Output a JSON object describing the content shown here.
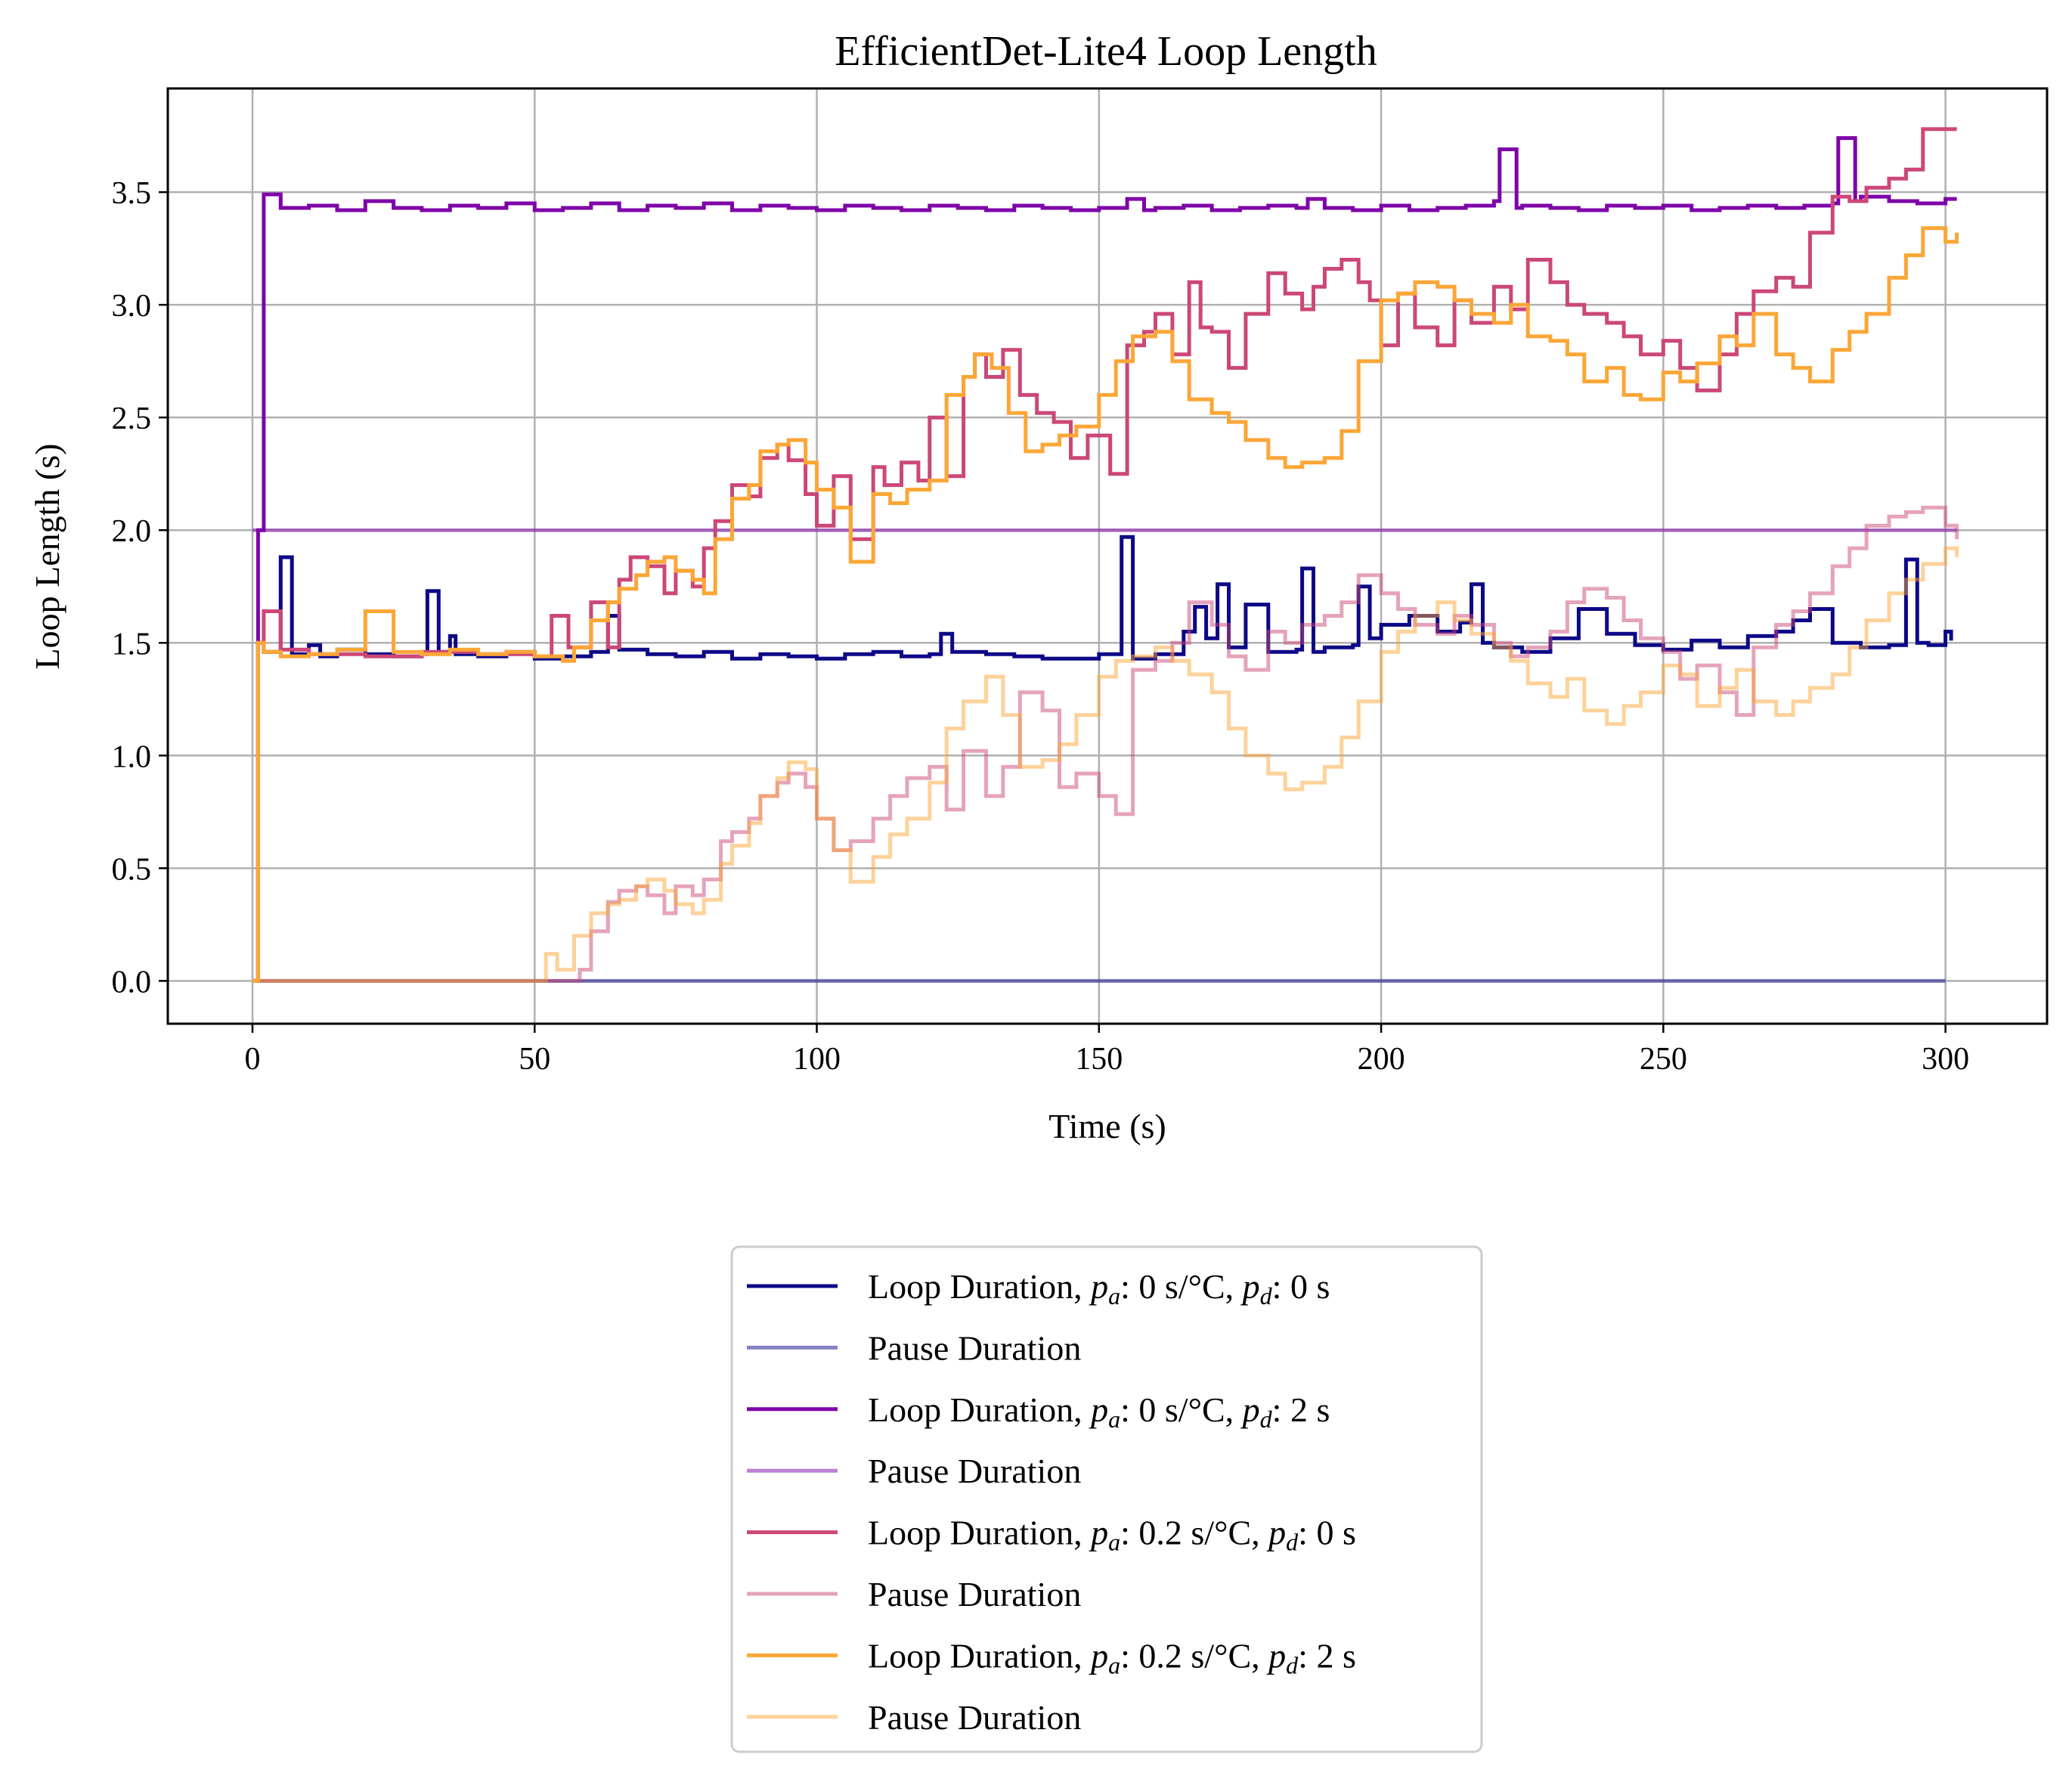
{
  "chart_data": {
    "type": "line",
    "title": "EfficientDet-Lite4 Loop Length",
    "xlabel": "Time (s)",
    "ylabel": "Loop Length (s)",
    "xlim": [
      -15,
      318
    ],
    "ylim": [
      -0.19,
      3.96
    ],
    "xticks": [
      0,
      50,
      100,
      150,
      200,
      250,
      300
    ],
    "yticks": [
      0.0,
      0.5,
      1.0,
      1.5,
      2.0,
      2.5,
      3.0,
      3.5
    ],
    "xtick_labels": [
      "0",
      "50",
      "100",
      "150",
      "200",
      "250",
      "300"
    ],
    "ytick_labels": [
      "0.0",
      "0.5",
      "1.0",
      "1.5",
      "2.0",
      "2.5",
      "3.0",
      "3.5"
    ],
    "grid": true,
    "legend_position": "below",
    "series": [
      {
        "name": "Loop Duration, p_a: 0 s/°C, p_d: 0 s",
        "legend_main": "Loop Duration, ",
        "legend_pa": "p",
        "legend_pa_sub": "a",
        "legend_mid": ": 0 s/°C, ",
        "legend_pd": "p",
        "legend_pd_sub": "d",
        "legend_end": ": 0 s",
        "color": "#0d0887",
        "opacity": 1.0,
        "x": [
          0,
          1,
          2,
          5,
          7,
          10,
          12,
          15,
          20,
          25,
          30,
          31,
          33,
          35,
          36,
          40,
          45,
          50,
          55,
          60,
          63,
          65,
          70,
          75,
          80,
          85,
          90,
          95,
          100,
          105,
          110,
          115,
          120,
          122,
          124,
          130,
          135,
          140,
          150,
          154,
          156,
          160,
          165,
          167,
          169,
          171,
          173,
          176,
          180,
          185,
          186,
          188,
          190,
          195,
          196,
          198,
          200,
          205,
          210,
          214,
          216,
          218,
          220,
          225,
          230,
          235,
          240,
          245,
          250,
          255,
          260,
          265,
          270,
          273,
          276,
          280,
          285,
          290,
          293,
          295,
          297,
          300,
          301
        ],
        "y": [
          0,
          1.5,
          1.46,
          1.88,
          1.45,
          1.49,
          1.44,
          1.47,
          1.45,
          1.44,
          1.45,
          1.73,
          1.46,
          1.53,
          1.45,
          1.44,
          1.46,
          1.43,
          1.44,
          1.46,
          1.62,
          1.47,
          1.45,
          1.44,
          1.46,
          1.43,
          1.45,
          1.44,
          1.43,
          1.45,
          1.46,
          1.44,
          1.45,
          1.54,
          1.46,
          1.45,
          1.44,
          1.43,
          1.45,
          1.97,
          1.43,
          1.45,
          1.55,
          1.66,
          1.52,
          1.76,
          1.48,
          1.67,
          1.46,
          1.47,
          1.83,
          1.46,
          1.48,
          1.49,
          1.75,
          1.52,
          1.58,
          1.62,
          1.55,
          1.59,
          1.76,
          1.5,
          1.48,
          1.46,
          1.52,
          1.65,
          1.54,
          1.49,
          1.47,
          1.51,
          1.48,
          1.53,
          1.55,
          1.6,
          1.65,
          1.5,
          1.48,
          1.49,
          1.87,
          1.5,
          1.49,
          1.55,
          1.51
        ]
      },
      {
        "name": "Pause Duration",
        "legend_main": "Pause Duration",
        "color": "#0d0887",
        "opacity": 0.5,
        "x": [
          0,
          300
        ],
        "y": [
          0,
          0
        ]
      },
      {
        "name": "Loop Duration, p_a: 0 s/°C, p_d: 2 s",
        "legend_main": "Loop Duration, ",
        "legend_pa": "p",
        "legend_pa_sub": "a",
        "legend_mid": ": 0 s/°C, ",
        "legend_pd": "p",
        "legend_pd_sub": "d",
        "legend_end": ": 2 s",
        "color": "#7e03a8",
        "opacity": 1.0,
        "x": [
          0,
          1,
          2,
          5,
          10,
          15,
          20,
          25,
          30,
          35,
          40,
          45,
          50,
          55,
          60,
          65,
          70,
          75,
          80,
          85,
          90,
          95,
          100,
          105,
          110,
          115,
          120,
          125,
          130,
          135,
          140,
          145,
          150,
          155,
          158,
          160,
          165,
          170,
          175,
          180,
          185,
          187,
          190,
          195,
          200,
          205,
          210,
          215,
          220,
          221,
          224,
          225,
          230,
          235,
          240,
          245,
          250,
          255,
          260,
          265,
          270,
          275,
          280,
          281,
          284,
          285,
          290,
          295,
          300,
          302
        ],
        "y": [
          0,
          2.0,
          3.49,
          3.43,
          3.44,
          3.42,
          3.46,
          3.43,
          3.42,
          3.44,
          3.43,
          3.45,
          3.42,
          3.43,
          3.45,
          3.42,
          3.44,
          3.43,
          3.45,
          3.42,
          3.44,
          3.43,
          3.42,
          3.44,
          3.43,
          3.42,
          3.44,
          3.43,
          3.42,
          3.44,
          3.43,
          3.42,
          3.43,
          3.47,
          3.42,
          3.43,
          3.44,
          3.42,
          3.43,
          3.44,
          3.43,
          3.47,
          3.43,
          3.42,
          3.44,
          3.42,
          3.43,
          3.44,
          3.46,
          3.69,
          3.43,
          3.44,
          3.43,
          3.42,
          3.44,
          3.43,
          3.44,
          3.42,
          3.43,
          3.44,
          3.43,
          3.44,
          3.45,
          3.74,
          3.46,
          3.48,
          3.46,
          3.45,
          3.47,
          3.47
        ]
      },
      {
        "name": "Pause Duration",
        "legend_main": "Pause Duration",
        "color": "#7e03a8",
        "opacity": 0.5,
        "x": [
          0,
          302
        ],
        "y": [
          2.0,
          2.0
        ]
      },
      {
        "name": "Loop Duration, p_a: 0.2 s/°C, p_d: 0 s",
        "legend_main": "Loop Duration, ",
        "legend_pa": "p",
        "legend_pa_sub": "a",
        "legend_mid": ": 0.2 s/°C, ",
        "legend_pd": "p",
        "legend_pd_sub": "d",
        "legend_end": ": 0 s",
        "color": "#cc4778",
        "opacity": 1.0,
        "x": [
          0,
          1,
          2,
          5,
          10,
          20,
          30,
          40,
          50,
          53,
          56,
          60,
          63,
          65,
          67,
          70,
          73,
          75,
          78,
          80,
          82,
          85,
          88,
          90,
          93,
          95,
          98,
          100,
          103,
          106,
          110,
          112,
          115,
          118,
          120,
          123,
          126,
          128,
          130,
          133,
          136,
          139,
          142,
          145,
          148,
          152,
          155,
          158,
          160,
          163,
          166,
          168,
          170,
          173,
          176,
          180,
          183,
          186,
          188,
          190,
          193,
          196,
          198,
          200,
          203,
          206,
          210,
          213,
          216,
          220,
          223,
          226,
          230,
          233,
          236,
          240,
          243,
          246,
          250,
          253,
          256,
          260,
          263,
          266,
          270,
          273,
          276,
          280,
          283,
          286,
          290,
          293,
          296,
          300,
          302
        ],
        "y": [
          0,
          1.5,
          1.64,
          1.47,
          1.45,
          1.44,
          1.46,
          1.45,
          1.44,
          1.62,
          1.48,
          1.68,
          1.48,
          1.78,
          1.88,
          1.84,
          1.72,
          1.82,
          1.75,
          1.92,
          2.04,
          2.2,
          2.15,
          2.32,
          2.38,
          2.31,
          2.16,
          2.02,
          2.24,
          1.96,
          2.28,
          2.2,
          2.3,
          2.22,
          2.5,
          2.24,
          2.68,
          2.78,
          2.68,
          2.8,
          2.6,
          2.52,
          2.48,
          2.32,
          2.42,
          2.25,
          2.82,
          2.88,
          2.96,
          2.78,
          3.1,
          2.9,
          2.88,
          2.72,
          2.96,
          3.14,
          3.05,
          2.98,
          3.08,
          3.16,
          3.2,
          3.1,
          3.02,
          2.82,
          3.05,
          2.9,
          2.82,
          3.02,
          2.92,
          3.08,
          2.98,
          3.2,
          3.1,
          3.0,
          2.96,
          2.92,
          2.86,
          2.78,
          2.84,
          2.72,
          2.62,
          2.78,
          2.96,
          3.06,
          3.12,
          3.08,
          3.32,
          3.48,
          3.46,
          3.52,
          3.56,
          3.6,
          3.78,
          3.78,
          3.78
        ]
      },
      {
        "name": "Pause Duration",
        "legend_main": "Pause Duration",
        "color": "#cc4778",
        "opacity": 0.5,
        "x": [
          0,
          58,
          60,
          63,
          65,
          68,
          70,
          73,
          75,
          78,
          80,
          83,
          85,
          88,
          90,
          93,
          95,
          98,
          100,
          103,
          106,
          110,
          113,
          116,
          120,
          123,
          126,
          130,
          133,
          136,
          140,
          143,
          146,
          150,
          153,
          156,
          160,
          163,
          166,
          170,
          173,
          176,
          180,
          183,
          186,
          190,
          193,
          196,
          200,
          203,
          206,
          210,
          213,
          216,
          220,
          223,
          226,
          230,
          233,
          236,
          240,
          243,
          246,
          250,
          253,
          256,
          260,
          263,
          266,
          270,
          273,
          276,
          280,
          283,
          286,
          290,
          293,
          296,
          300,
          302
        ],
        "y": [
          0,
          0.05,
          0.22,
          0.35,
          0.4,
          0.42,
          0.38,
          0.3,
          0.42,
          0.38,
          0.45,
          0.62,
          0.66,
          0.72,
          0.82,
          0.88,
          0.92,
          0.86,
          0.72,
          0.58,
          0.62,
          0.72,
          0.82,
          0.9,
          0.95,
          0.76,
          1.02,
          0.82,
          0.95,
          1.28,
          1.2,
          0.86,
          0.92,
          0.82,
          0.74,
          1.38,
          1.42,
          1.5,
          1.68,
          1.58,
          1.44,
          1.38,
          1.55,
          1.5,
          1.58,
          1.62,
          1.68,
          1.8,
          1.72,
          1.65,
          1.58,
          1.54,
          1.62,
          1.58,
          1.5,
          1.44,
          1.48,
          1.55,
          1.68,
          1.74,
          1.7,
          1.6,
          1.52,
          1.46,
          1.34,
          1.4,
          1.28,
          1.18,
          1.48,
          1.58,
          1.64,
          1.72,
          1.84,
          1.92,
          2.02,
          2.06,
          2.08,
          2.1,
          2.02,
          1.96
        ]
      },
      {
        "name": "Loop Duration, p_a: 0.2 s/°C, p_d: 2 s",
        "legend_main": "Loop Duration, ",
        "legend_pa": "p",
        "legend_pa_sub": "a",
        "legend_mid": ": 0.2 s/°C, ",
        "legend_pd": "p",
        "legend_pd_sub": "d",
        "legend_end": ": 2 s",
        "color": "#fca636",
        "opacity": 1.0,
        "x": [
          0,
          1,
          2,
          5,
          10,
          15,
          20,
          25,
          30,
          35,
          40,
          45,
          50,
          55,
          57,
          60,
          63,
          65,
          68,
          70,
          73,
          75,
          78,
          80,
          82,
          85,
          88,
          90,
          93,
          95,
          98,
          100,
          103,
          106,
          110,
          113,
          116,
          120,
          123,
          126,
          128,
          131,
          134,
          137,
          140,
          143,
          146,
          150,
          153,
          156,
          160,
          163,
          166,
          170,
          173,
          176,
          180,
          183,
          186,
          190,
          193,
          196,
          200,
          203,
          206,
          210,
          213,
          216,
          220,
          223,
          226,
          230,
          233,
          236,
          240,
          243,
          246,
          250,
          253,
          256,
          260,
          263,
          266,
          270,
          273,
          276,
          280,
          283,
          286,
          290,
          293,
          296,
          300,
          302
        ],
        "y": [
          0,
          1.5,
          1.46,
          1.44,
          1.45,
          1.47,
          1.64,
          1.46,
          1.45,
          1.47,
          1.45,
          1.46,
          1.44,
          1.42,
          1.48,
          1.6,
          1.68,
          1.74,
          1.8,
          1.86,
          1.88,
          1.82,
          1.78,
          1.72,
          1.96,
          2.14,
          2.2,
          2.35,
          2.38,
          2.4,
          2.3,
          2.18,
          2.1,
          1.86,
          2.16,
          2.12,
          2.18,
          2.22,
          2.6,
          2.68,
          2.78,
          2.72,
          2.52,
          2.35,
          2.38,
          2.42,
          2.46,
          2.6,
          2.75,
          2.86,
          2.88,
          2.75,
          2.58,
          2.52,
          2.48,
          2.4,
          2.32,
          2.28,
          2.3,
          2.32,
          2.44,
          2.75,
          3.02,
          3.05,
          3.1,
          3.08,
          3.02,
          2.96,
          2.92,
          3.0,
          2.86,
          2.84,
          2.78,
          2.66,
          2.72,
          2.6,
          2.58,
          2.7,
          2.66,
          2.74,
          2.86,
          2.82,
          2.96,
          2.78,
          2.72,
          2.66,
          2.8,
          2.88,
          2.96,
          3.12,
          3.22,
          3.34,
          3.28,
          3.32
        ]
      },
      {
        "name": "Pause Duration",
        "legend_main": "Pause Duration",
        "color": "#fca636",
        "opacity": 0.5,
        "x": [
          0,
          52,
          54,
          57,
          60,
          63,
          65,
          68,
          70,
          73,
          75,
          78,
          80,
          83,
          85,
          88,
          90,
          93,
          95,
          98,
          100,
          103,
          106,
          110,
          113,
          116,
          120,
          123,
          126,
          130,
          133,
          136,
          140,
          143,
          146,
          150,
          153,
          156,
          160,
          163,
          166,
          170,
          173,
          176,
          180,
          183,
          186,
          190,
          193,
          196,
          200,
          203,
          206,
          210,
          213,
          216,
          220,
          223,
          226,
          230,
          233,
          236,
          240,
          243,
          246,
          250,
          253,
          256,
          260,
          263,
          266,
          270,
          273,
          276,
          280,
          283,
          286,
          290,
          293,
          296,
          300,
          302
        ],
        "y": [
          0,
          0.12,
          0.05,
          0.2,
          0.3,
          0.34,
          0.36,
          0.42,
          0.45,
          0.4,
          0.34,
          0.3,
          0.36,
          0.52,
          0.6,
          0.7,
          0.82,
          0.9,
          0.97,
          0.94,
          0.72,
          0.58,
          0.44,
          0.55,
          0.65,
          0.72,
          0.88,
          1.12,
          1.24,
          1.35,
          1.18,
          0.95,
          0.98,
          1.05,
          1.18,
          1.35,
          1.42,
          1.44,
          1.48,
          1.42,
          1.36,
          1.28,
          1.12,
          1.0,
          0.92,
          0.85,
          0.88,
          0.95,
          1.08,
          1.24,
          1.46,
          1.55,
          1.62,
          1.68,
          1.6,
          1.54,
          1.48,
          1.42,
          1.32,
          1.26,
          1.34,
          1.2,
          1.14,
          1.22,
          1.28,
          1.4,
          1.36,
          1.22,
          1.3,
          1.38,
          1.24,
          1.18,
          1.24,
          1.3,
          1.36,
          1.48,
          1.6,
          1.72,
          1.78,
          1.85,
          1.92,
          1.88
        ]
      }
    ]
  }
}
